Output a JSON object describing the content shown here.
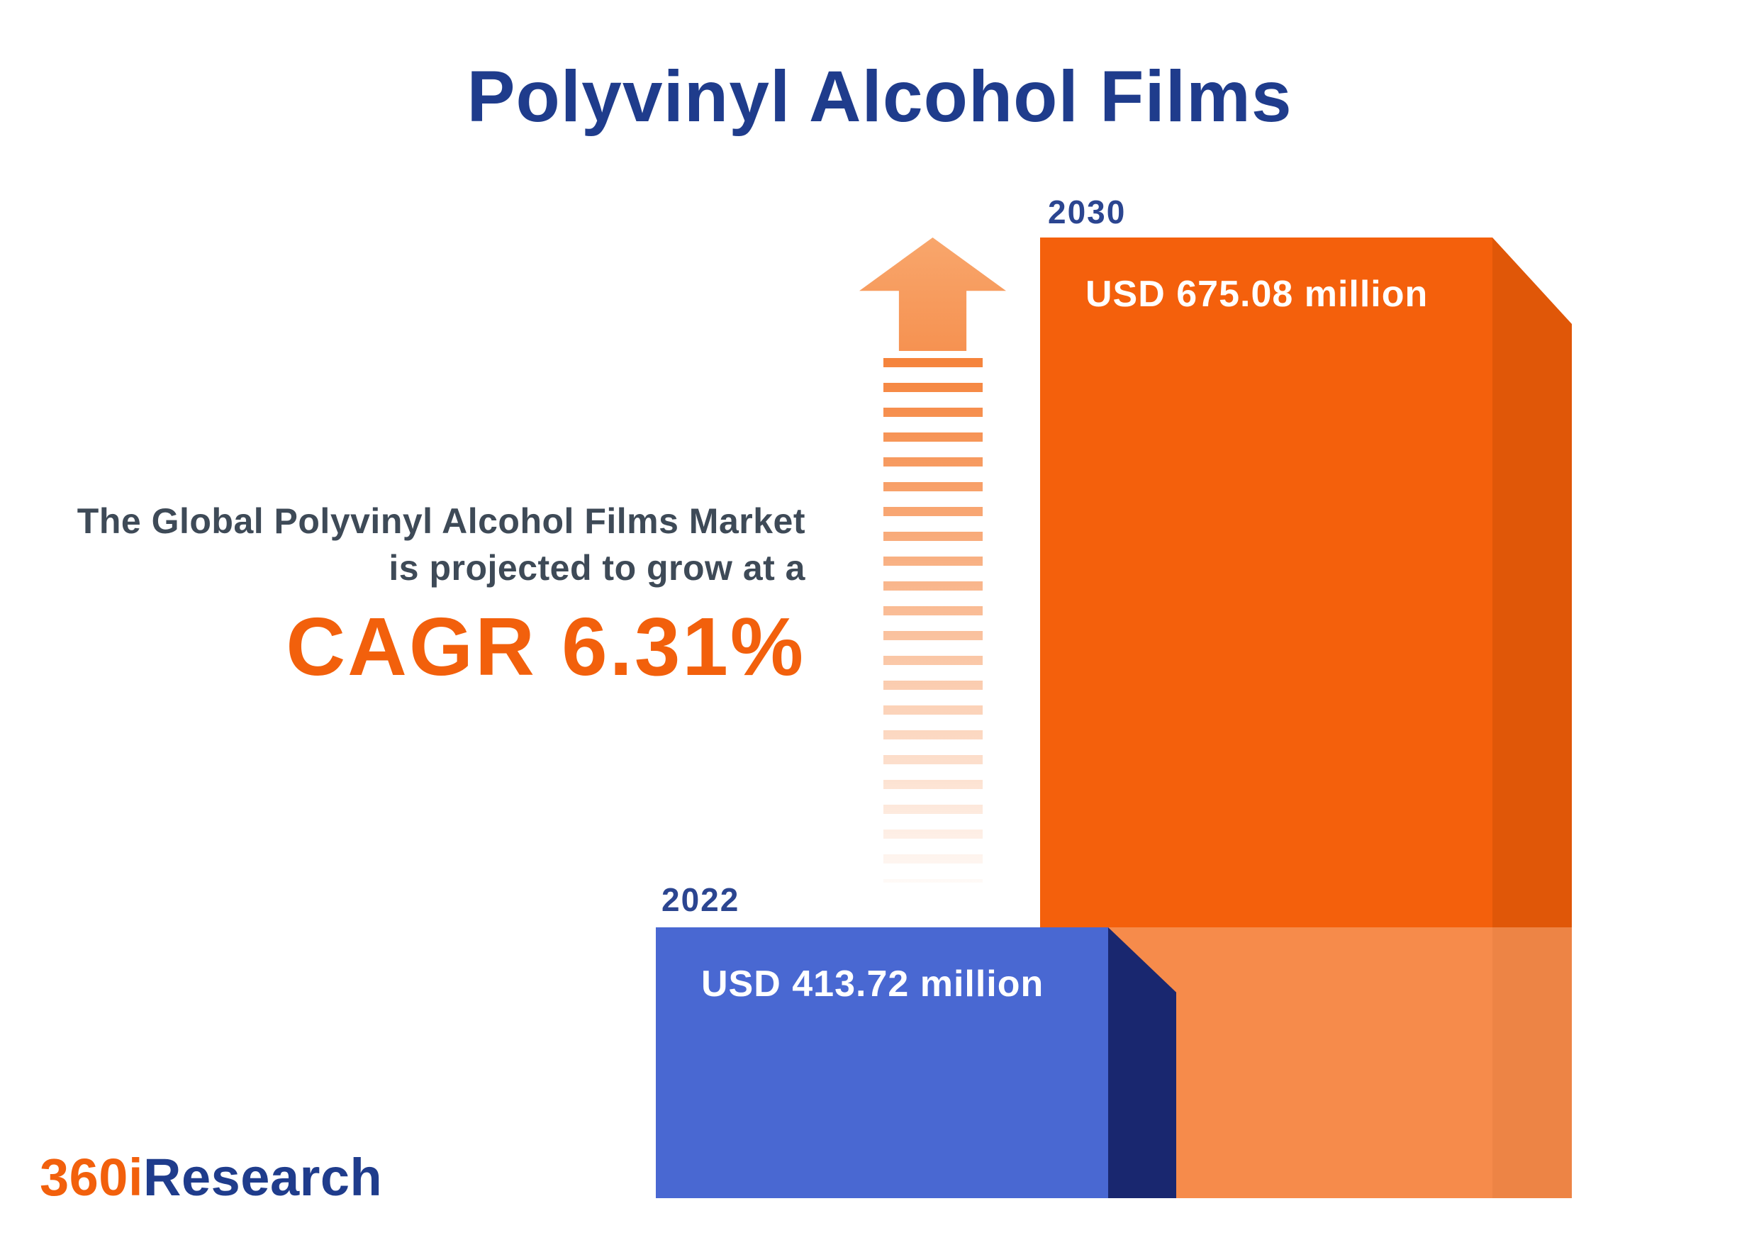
{
  "title": "Polyvinyl Alcohol Films",
  "subtitle": {
    "line1": "The Global Polyvinyl Alcohol Films Market",
    "line2": "is projected to grow at a",
    "cagr": "CAGR 6.31%"
  },
  "bars": [
    {
      "year": "2022",
      "value_label": "USD 413.72 million",
      "color": "#4968D2"
    },
    {
      "year": "2030",
      "value_label": "USD 675.08 million",
      "color": "#F4600C"
    }
  ],
  "logo": {
    "prefix": "360i",
    "suffix": "Research"
  },
  "colors": {
    "title_navy": "#1F3C8C",
    "description_gray": "#3E4A57",
    "accent_orange": "#F2600C",
    "bar_2030_front": "#F4600C",
    "bar_2030_side": "#E05708",
    "bar_2030_lower_shade": "#F68B4B",
    "bar_2022_front": "#4968D2",
    "bar_2022_side": "#19276F",
    "arrow_orange": "#F69251"
  },
  "chart_data": {
    "type": "bar",
    "title": "Polyvinyl Alcohol Films",
    "categories": [
      "2022",
      "2030"
    ],
    "series": [
      {
        "name": "Global Polyvinyl Alcohol Films Market size",
        "values": [
          413.72,
          675.08
        ]
      }
    ],
    "unit": "USD million",
    "data_labels": [
      "USD 413.72 million",
      "USD 675.08 million"
    ],
    "growth_metric": {
      "label": "CAGR",
      "value_percent": 6.31,
      "period": "2022-2030"
    },
    "bar_colors": [
      "#4968D2",
      "#F4600C"
    ],
    "xlabel": "",
    "ylabel": "",
    "axes": "none",
    "grid": false,
    "legend": "none",
    "style": "pictorial 3D extruded bars with in-bar data labels and upward dashed growth arrow"
  }
}
